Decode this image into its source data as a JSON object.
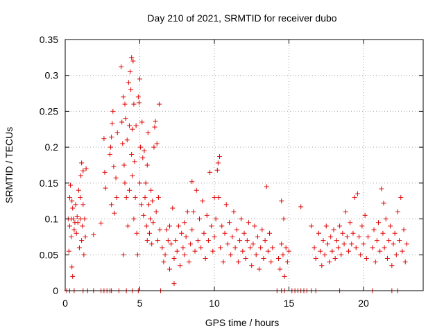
{
  "chart_data": {
    "type": "scatter",
    "title": "Day 210 of 2021, SRMTID for receiver dubo",
    "xlabel": "GPS time / hours",
    "ylabel": "SRMTID / TECUs",
    "xlim": [
      0,
      24
    ],
    "ylim": [
      0,
      0.35
    ],
    "xticks": [
      0,
      5,
      10,
      15,
      20
    ],
    "xtick_labels": [
      "0",
      "5",
      "10",
      "15",
      "20"
    ],
    "yticks": [
      0,
      0.05,
      0.1,
      0.15,
      0.2,
      0.25,
      0.3,
      0.35
    ],
    "ytick_labels": [
      "0",
      "0.05",
      "0.1",
      "0.15",
      "0.2",
      "0.25",
      "0.3",
      "0.35"
    ],
    "grid": true,
    "marker": "+",
    "marker_color": "#e00000",
    "series": [
      {
        "name": "SRMTID",
        "points": [
          [
            0.2,
            0.1
          ],
          [
            0.25,
            0.055
          ],
          [
            0.3,
            0.13
          ],
          [
            0.3,
            0.09
          ],
          [
            0.35,
            0.147
          ],
          [
            0.4,
            0.1
          ],
          [
            0.4,
            0.075
          ],
          [
            0.45,
            0.033
          ],
          [
            0.45,
            0.125
          ],
          [
            0.5,
            0.02
          ],
          [
            0.5,
            0.115
          ],
          [
            0.55,
            0.1
          ],
          [
            0.6,
            0.085
          ],
          [
            0.65,
            0.095
          ],
          [
            0.7,
            0.12
          ],
          [
            0.75,
            0.08
          ],
          [
            0.8,
            0.103
          ],
          [
            0.85,
            0.095
          ],
          [
            0.9,
            0.14
          ],
          [
            0.95,
            0.06
          ],
          [
            1.0,
            0.1
          ],
          [
            1.0,
            0.13
          ],
          [
            1.05,
            0.16
          ],
          [
            1.1,
            0.178
          ],
          [
            1.1,
            0.07
          ],
          [
            1.15,
            0.09
          ],
          [
            1.2,
            0.167
          ],
          [
            1.2,
            0.12
          ],
          [
            1.25,
            0.05
          ],
          [
            1.3,
            0.1
          ],
          [
            1.35,
            0.075
          ],
          [
            1.4,
            0.17
          ],
          [
            1.9,
            0.078
          ],
          [
            2.4,
            0.094
          ],
          [
            2.6,
            0.212
          ],
          [
            2.65,
            0.165
          ],
          [
            2.7,
            0.143
          ],
          [
            3.0,
            0.19
          ],
          [
            3.05,
            0.2
          ],
          [
            3.1,
            0.214
          ],
          [
            3.1,
            0.12
          ],
          [
            3.15,
            0.233
          ],
          [
            3.2,
            0.25
          ],
          [
            3.25,
            0.173
          ],
          [
            3.3,
            0.108
          ],
          [
            3.4,
            0.157
          ],
          [
            3.45,
            0.13
          ],
          [
            3.5,
            0.22
          ],
          [
            3.75,
            0.312
          ],
          [
            3.8,
            0.235
          ],
          [
            3.85,
            0.205
          ],
          [
            3.9,
            0.27
          ],
          [
            3.9,
            0.05
          ],
          [
            3.95,
            0.175
          ],
          [
            4.0,
            0.26
          ],
          [
            4.0,
            0.15
          ],
          [
            4.05,
            0.24
          ],
          [
            4.1,
            0.13
          ],
          [
            4.15,
            0.21
          ],
          [
            4.2,
            0.09
          ],
          [
            4.25,
            0.29
          ],
          [
            4.3,
            0.23
          ],
          [
            4.3,
            0.14
          ],
          [
            4.35,
            0.305
          ],
          [
            4.4,
            0.28
          ],
          [
            4.45,
            0.325
          ],
          [
            4.45,
            0.19
          ],
          [
            4.5,
            0.225
          ],
          [
            4.5,
            0.16
          ],
          [
            4.55,
            0.32
          ],
          [
            4.6,
            0.26
          ],
          [
            4.6,
            0.1
          ],
          [
            4.65,
            0.18
          ],
          [
            4.7,
            0.13
          ],
          [
            4.75,
            0.23
          ],
          [
            4.8,
            0.08
          ],
          [
            4.85,
            0.05
          ],
          [
            4.9,
            0.27
          ],
          [
            4.95,
            0.262
          ],
          [
            5.0,
            0.295
          ],
          [
            5.0,
            0.15
          ],
          [
            5.05,
            0.2
          ],
          [
            5.1,
            0.12
          ],
          [
            5.15,
            0.235
          ],
          [
            5.2,
            0.185
          ],
          [
            5.25,
            0.105
          ],
          [
            5.3,
            0.195
          ],
          [
            5.35,
            0.13
          ],
          [
            5.4,
            0.15
          ],
          [
            5.45,
            0.09
          ],
          [
            5.5,
            0.175
          ],
          [
            5.5,
            0.07
          ],
          [
            5.55,
            0.22
          ],
          [
            5.6,
            0.12
          ],
          [
            5.65,
            0.08
          ],
          [
            5.7,
            0.1
          ],
          [
            5.75,
            0.14
          ],
          [
            5.8,
            0.065
          ],
          [
            5.85,
            0.125
          ],
          [
            5.9,
            0.095
          ],
          [
            5.95,
            0.2
          ],
          [
            6.0,
            0.228
          ],
          [
            6.05,
            0.236
          ],
          [
            6.1,
            0.11
          ],
          [
            6.15,
            0.205
          ],
          [
            6.2,
            0.07
          ],
          [
            6.25,
            0.13
          ],
          [
            6.3,
            0.26
          ],
          [
            6.35,
            0.085
          ],
          [
            6.5,
            0.06
          ],
          [
            6.6,
            0.04
          ],
          [
            6.7,
            0.05
          ],
          [
            6.8,
            0.085
          ],
          [
            6.9,
            0.07
          ],
          [
            7.0,
            0.09
          ],
          [
            7.0,
            0.03
          ],
          [
            7.1,
            0.065
          ],
          [
            7.2,
            0.115
          ],
          [
            7.3,
            0.01
          ],
          [
            7.3,
            0.045
          ],
          [
            7.4,
            0.07
          ],
          [
            7.5,
            0.055
          ],
          [
            7.6,
            0.09
          ],
          [
            7.7,
            0.035
          ],
          [
            7.8,
            0.08
          ],
          [
            7.9,
            0.06
          ],
          [
            8.0,
            0.095
          ],
          [
            8.0,
            0.05
          ],
          [
            8.1,
            0.075
          ],
          [
            8.2,
            0.11
          ],
          [
            8.3,
            0.04
          ],
          [
            8.4,
            0.065
          ],
          [
            8.5,
            0.152
          ],
          [
            8.5,
            0.085
          ],
          [
            8.6,
            0.11
          ],
          [
            8.7,
            0.055
          ],
          [
            8.8,
            0.14
          ],
          [
            8.9,
            0.07
          ],
          [
            9.0,
            0.1
          ],
          [
            9.1,
            0.06
          ],
          [
            9.2,
            0.125
          ],
          [
            9.3,
            0.08
          ],
          [
            9.4,
            0.045
          ],
          [
            9.5,
            0.105
          ],
          [
            9.6,
            0.07
          ],
          [
            9.7,
            0.165
          ],
          [
            9.8,
            0.09
          ],
          [
            9.9,
            0.055
          ],
          [
            10.0,
            0.13
          ],
          [
            10.0,
            0.075
          ],
          [
            10.1,
            0.1
          ],
          [
            10.2,
            0.168
          ],
          [
            10.25,
            0.178
          ],
          [
            10.3,
            0.13
          ],
          [
            10.35,
            0.187
          ],
          [
            10.4,
            0.06
          ],
          [
            10.5,
            0.09
          ],
          [
            10.6,
            0.04
          ],
          [
            10.7,
            0.08
          ],
          [
            10.8,
            0.12
          ],
          [
            10.9,
            0.065
          ],
          [
            11.0,
            0.095
          ],
          [
            11.1,
            0.05
          ],
          [
            11.2,
            0.075
          ],
          [
            11.3,
            0.11
          ],
          [
            11.4,
            0.06
          ],
          [
            11.5,
            0.085
          ],
          [
            11.6,
            0.04
          ],
          [
            11.7,
            0.07
          ],
          [
            11.8,
            0.1
          ],
          [
            11.9,
            0.055
          ],
          [
            12.0,
            0.08
          ],
          [
            12.1,
            0.045
          ],
          [
            12.2,
            0.07
          ],
          [
            12.3,
            0.095
          ],
          [
            12.4,
            0.06
          ],
          [
            12.5,
            0.035
          ],
          [
            12.6,
            0.065
          ],
          [
            12.7,
            0.09
          ],
          [
            12.8,
            0.05
          ],
          [
            12.9,
            0.075
          ],
          [
            13.0,
            0.03
          ],
          [
            13.1,
            0.06
          ],
          [
            13.2,
            0.085
          ],
          [
            13.3,
            0.045
          ],
          [
            13.4,
            0.07
          ],
          [
            13.5,
            0.145
          ],
          [
            13.6,
            0.055
          ],
          [
            13.7,
            0.08
          ],
          [
            13.8,
            0.04
          ],
          [
            13.9,
            0.06
          ],
          [
            14.3,
            0.045
          ],
          [
            14.4,
            0.03
          ],
          [
            14.5,
            0.065
          ],
          [
            14.5,
            0.125
          ],
          [
            14.6,
            0.05
          ],
          [
            14.65,
            0.1
          ],
          [
            14.7,
            0.02
          ],
          [
            14.8,
            0.06
          ],
          [
            14.9,
            0.04
          ],
          [
            15.0,
            0.055
          ],
          [
            15.8,
            0.117
          ],
          [
            16.5,
            0.09
          ],
          [
            16.7,
            0.06
          ],
          [
            16.8,
            0.045
          ],
          [
            17.0,
            0.08
          ],
          [
            17.1,
            0.055
          ],
          [
            17.2,
            0.035
          ],
          [
            17.3,
            0.07
          ],
          [
            17.4,
            0.05
          ],
          [
            17.5,
            0.09
          ],
          [
            17.6,
            0.065
          ],
          [
            17.7,
            0.04
          ],
          [
            17.8,
            0.075
          ],
          [
            17.9,
            0.055
          ],
          [
            18.0,
            0.085
          ],
          [
            18.1,
            0.045
          ],
          [
            18.2,
            0.07
          ],
          [
            18.3,
            0.06
          ],
          [
            18.4,
            0.09
          ],
          [
            18.5,
            0.05
          ],
          [
            18.6,
            0.08
          ],
          [
            18.7,
            0.065
          ],
          [
            18.8,
            0.11
          ],
          [
            18.9,
            0.075
          ],
          [
            19.0,
            0.055
          ],
          [
            19.1,
            0.095
          ],
          [
            19.2,
            0.065
          ],
          [
            19.3,
            0.08
          ],
          [
            19.4,
            0.13
          ],
          [
            19.5,
            0.06
          ],
          [
            19.6,
            0.135
          ],
          [
            19.7,
            0.075
          ],
          [
            19.8,
            0.05
          ],
          [
            19.9,
            0.09
          ],
          [
            20.0,
            0.065
          ],
          [
            20.1,
            0.105
          ],
          [
            20.2,
            0.045
          ],
          [
            20.3,
            0.075
          ],
          [
            20.6,
            0.06
          ],
          [
            20.7,
            0.085
          ],
          [
            20.8,
            0.04
          ],
          [
            20.9,
            0.07
          ],
          [
            21.0,
            0.095
          ],
          [
            21.1,
            0.055
          ],
          [
            21.2,
            0.142
          ],
          [
            21.3,
            0.08
          ],
          [
            21.35,
            0.122
          ],
          [
            21.4,
            0.06
          ],
          [
            21.5,
            0.1
          ],
          [
            21.6,
            0.045
          ],
          [
            21.7,
            0.07
          ],
          [
            21.8,
            0.09
          ],
          [
            21.9,
            0.035
          ],
          [
            22.0,
            0.065
          ],
          [
            22.1,
            0.08
          ],
          [
            22.2,
            0.05
          ],
          [
            22.3,
            0.11
          ],
          [
            22.4,
            0.07
          ],
          [
            22.5,
            0.13
          ],
          [
            22.6,
            0.055
          ],
          [
            22.7,
            0.085
          ],
          [
            22.8,
            0.04
          ],
          [
            22.9,
            0.065
          ]
        ]
      }
    ],
    "zero_hours": [
      0.1,
      0.3,
      0.6,
      1.2,
      1.5,
      1.9,
      2.4,
      2.6,
      2.8,
      3.0,
      3.1,
      3.6,
      4.1,
      4.5,
      4.9,
      6.4,
      14.2,
      14.5,
      14.7,
      15.2,
      15.4,
      15.6,
      15.8,
      16.0,
      16.2,
      16.5,
      16.8,
      18.4,
      20.6,
      21.9,
      22.3
    ]
  }
}
